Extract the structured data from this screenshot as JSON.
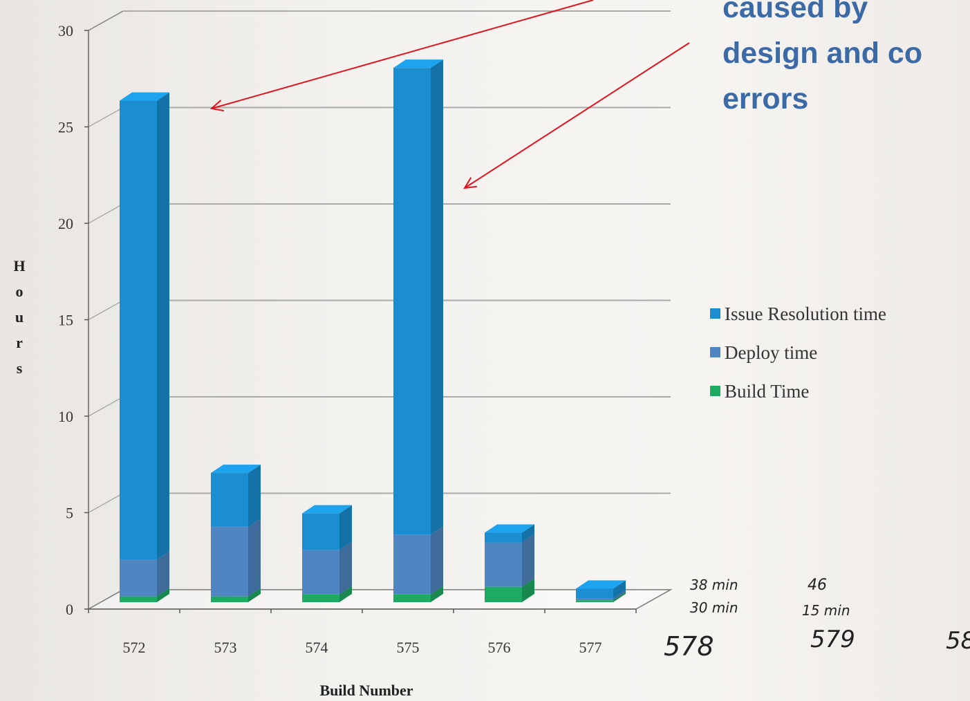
{
  "chart_data": {
    "type": "bar",
    "stacked": true,
    "three_d": true,
    "categories": [
      "572",
      "573",
      "574",
      "575",
      "576",
      "577"
    ],
    "series": [
      {
        "name": "Build Time",
        "color": "#1faa63",
        "values": [
          0.3,
          0.3,
          0.4,
          0.4,
          0.8,
          0.1
        ]
      },
      {
        "name": "Deploy time",
        "color": "#4f86c1",
        "values": [
          1.9,
          3.6,
          2.3,
          3.1,
          2.3,
          0.1
        ]
      },
      {
        "name": "Issue Resolution time",
        "color": "#1a8ed0",
        "values": [
          23.8,
          2.8,
          1.9,
          24.2,
          0.5,
          0.5
        ]
      }
    ],
    "xlabel": "Build Number",
    "ylabel": "Hours",
    "ylabel_letters": [
      "H",
      "o",
      "u",
      "r",
      "s"
    ],
    "ylim": [
      0,
      30
    ],
    "yticks": [
      "0",
      "5",
      "10",
      "15",
      "20",
      "25",
      "30"
    ],
    "grid": true,
    "legend_position": "right"
  },
  "legend": [
    "Issue Resolution time",
    "Deploy time",
    "Build Time"
  ],
  "annotation": {
    "lines": [
      "caused by",
      "design and co",
      "errors"
    ],
    "arrow_color": "#e0141e"
  },
  "handwritten": {
    "extra_builds": [
      "578",
      "579",
      "58"
    ],
    "build_578": {
      "deploy": "38 min",
      "build": "30 min"
    },
    "build_579": {
      "deploy": "46",
      "build": "15 min"
    }
  }
}
